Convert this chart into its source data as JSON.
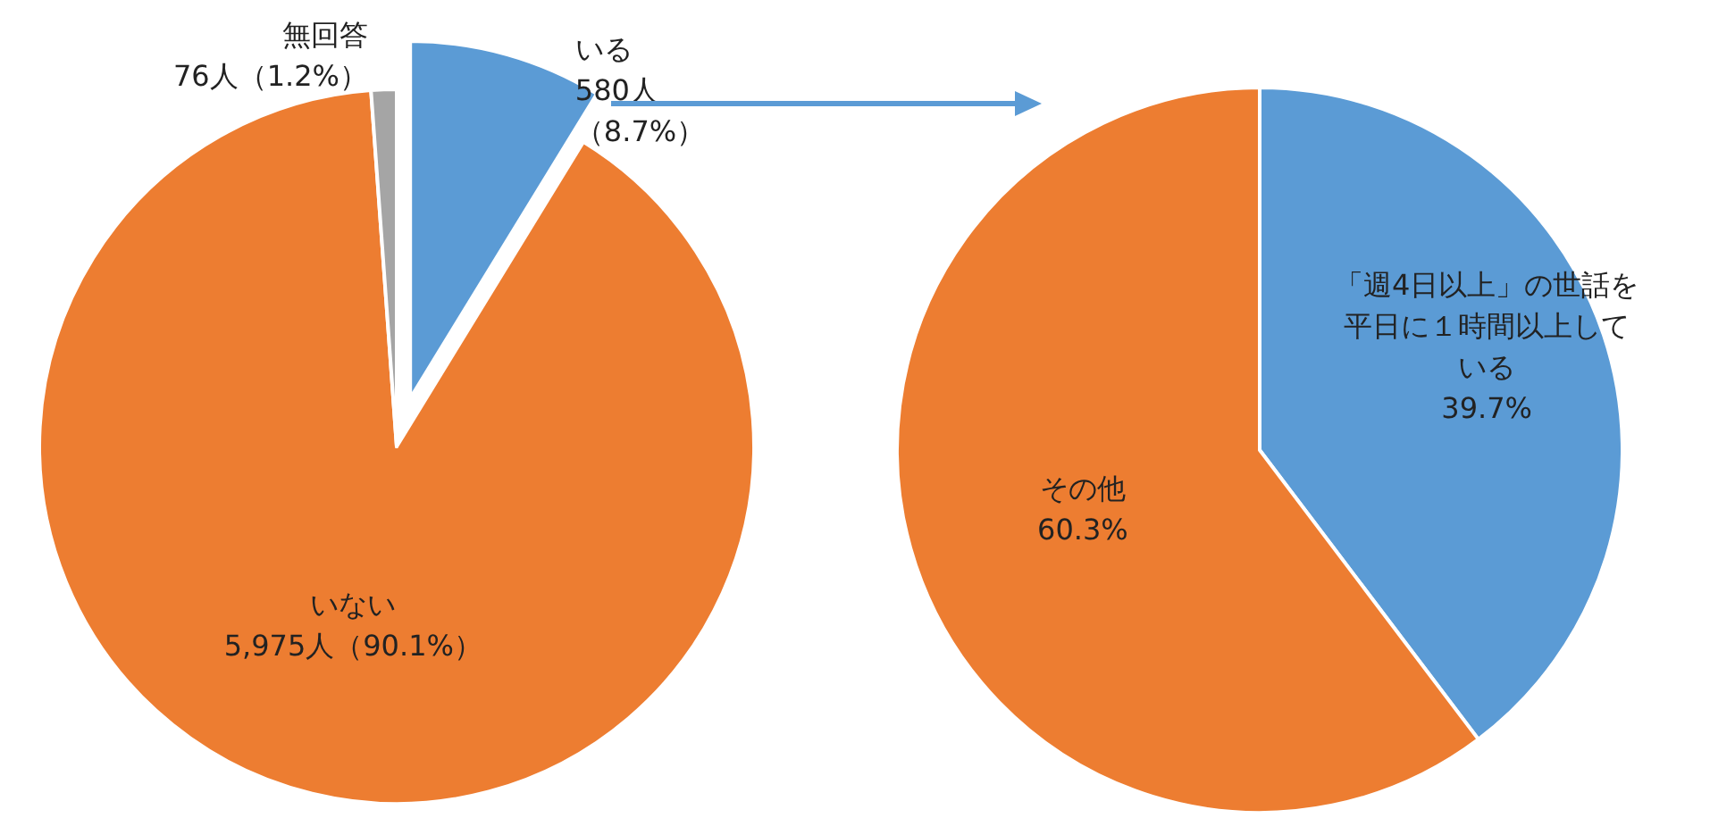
{
  "chart_data": [
    {
      "type": "pie",
      "categories": [
        "いる",
        "いない",
        "無回答"
      ],
      "values": [
        580,
        5975,
        76
      ],
      "value_labels": [
        "580人（8.7%）",
        "5,975人（90.1%）",
        "76人（1.2%）"
      ],
      "colors": [
        "#5b9bd5",
        "#ed7d31",
        "#a5a5a5"
      ],
      "legend": false
    },
    {
      "type": "pie",
      "categories": [
        "「週4日以上」の世話を平日に１時間以上している",
        "その他"
      ],
      "values": [
        39.7,
        60.3
      ],
      "value_labels": [
        "39.7%",
        "60.3%"
      ],
      "colors": [
        "#5b9bd5",
        "#ed7d31"
      ],
      "legend": false
    }
  ]
}
